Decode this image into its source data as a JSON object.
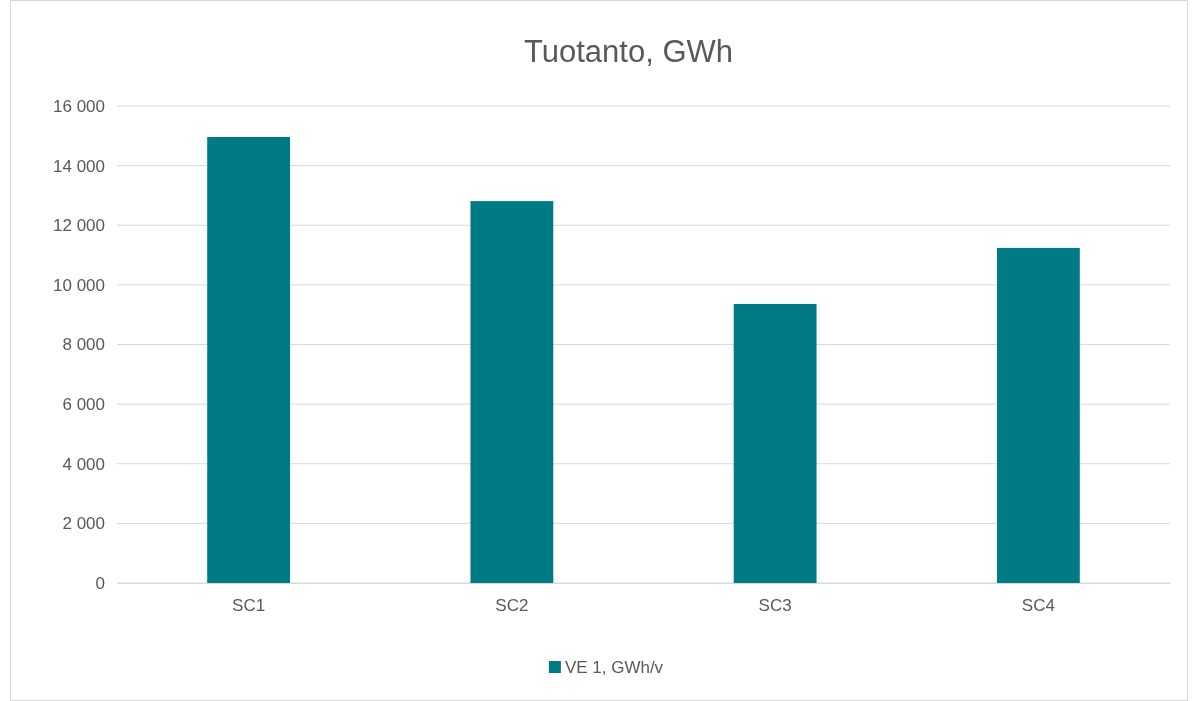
{
  "chart_data": {
    "type": "bar",
    "title": "Tuotanto, GWh",
    "categories": [
      "SC1",
      "SC2",
      "SC3",
      "SC4"
    ],
    "series": [
      {
        "name": "VE 1, GWh/v",
        "color": "#007a84",
        "values": [
          14960,
          12810,
          9360,
          11240
        ]
      }
    ],
    "ylim": [
      0,
      16000
    ],
    "yticks": [
      {
        "value": 0,
        "label": "0"
      },
      {
        "value": 2000,
        "label": "2 000"
      },
      {
        "value": 4000,
        "label": "4 000"
      },
      {
        "value": 6000,
        "label": "6 000"
      },
      {
        "value": 8000,
        "label": "8 000"
      },
      {
        "value": 10000,
        "label": "10 000"
      },
      {
        "value": 12000,
        "label": "12 000"
      },
      {
        "value": 14000,
        "label": "14 000"
      },
      {
        "value": 16000,
        "label": "16 000"
      }
    ],
    "grid": "y",
    "legend": "bottom"
  }
}
